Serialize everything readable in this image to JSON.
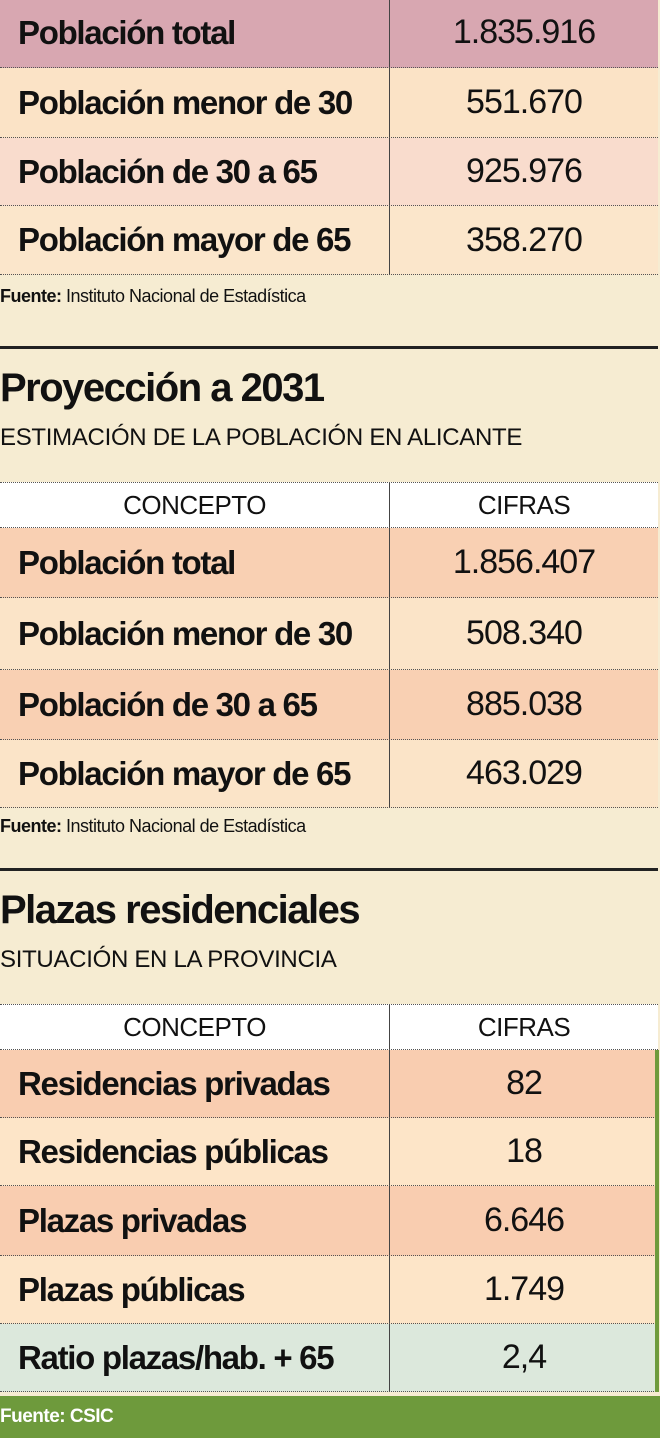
{
  "sections": [
    {
      "table": {
        "rows": [
          [
            "Población total",
            "1.835.916"
          ],
          [
            "Población menor de 30",
            "551.670"
          ],
          [
            "Población de 30 a 65",
            "925.976"
          ],
          [
            "Población mayor de 65",
            "358.270"
          ]
        ]
      },
      "source": {
        "label": "Fuente:",
        "text": "Instituto Nacional de Estadística"
      }
    },
    {
      "title": "Proyección a 2031",
      "subtitle": "ESTIMACIÓN DE LA POBLACIÓN EN ALICANTE",
      "table": {
        "header": [
          "CONCEPTO",
          "CIFRAS"
        ],
        "rows": [
          [
            "Población total",
            "1.856.407"
          ],
          [
            "Población menor de 30",
            "508.340"
          ],
          [
            "Población de 30 a 65",
            "885.038"
          ],
          [
            "Población mayor de 65",
            "463.029"
          ]
        ]
      },
      "source": {
        "label": "Fuente:",
        "text": "Instituto Nacional de Estadística"
      }
    },
    {
      "title": "Plazas residenciales",
      "subtitle": "SITUACIÓN EN LA PROVINCIA",
      "table": {
        "header": [
          "CONCEPTO",
          "CIFRAS"
        ],
        "rows": [
          [
            "Residencias privadas",
            "82"
          ],
          [
            "Residencias públicas",
            "18"
          ],
          [
            "Plazas privadas",
            "6.646"
          ],
          [
            "Plazas públicas",
            "1.749"
          ],
          [
            "Ratio plazas/hab. + 65",
            "2,4"
          ]
        ]
      },
      "source": {
        "label": "Fuente: CSIC"
      }
    }
  ]
}
